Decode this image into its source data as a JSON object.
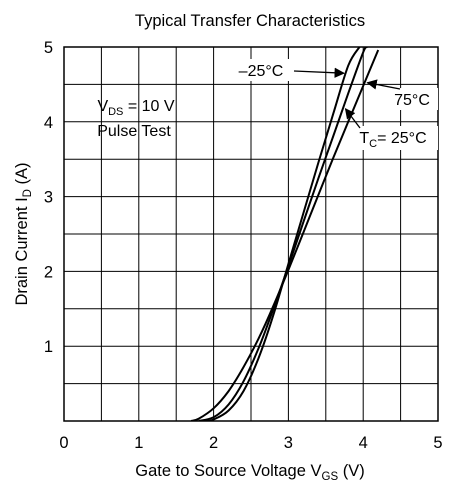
{
  "chart_data": {
    "type": "line",
    "title": "Typical Transfer Characteristics",
    "xlabel": {
      "main": "Gate to Source Voltage  V",
      "sub": "GS",
      "unit": "  (V)"
    },
    "ylabel": {
      "main": "Drain Current  I",
      "sub": "D",
      "unit": "  (A)"
    },
    "xlim": [
      0,
      5
    ],
    "ylim": [
      0,
      5
    ],
    "xticks": [
      "0",
      "1",
      "2",
      "3",
      "4",
      "5"
    ],
    "yticks": [
      "1",
      "2",
      "3",
      "4",
      "5"
    ],
    "grid": true,
    "conditions": {
      "line1": {
        "main": "V",
        "sub": "DS",
        "rest": " = 10 V"
      },
      "line2": "Pulse Test"
    },
    "series": [
      {
        "name": "–25°C",
        "x": [
          1.9,
          2.0,
          2.2,
          2.4,
          2.6,
          2.8,
          3.0,
          3.2,
          3.4,
          3.6,
          3.8,
          3.95
        ],
        "y": [
          0.0,
          0.02,
          0.14,
          0.4,
          0.84,
          1.42,
          2.1,
          2.78,
          3.45,
          4.11,
          4.75,
          5.0
        ]
      },
      {
        "name": "T_C = 25°C",
        "x": [
          1.8,
          2.0,
          2.2,
          2.4,
          2.6,
          2.8,
          3.0,
          3.2,
          3.4,
          3.6,
          3.8,
          4.0,
          4.05
        ],
        "y": [
          0.0,
          0.05,
          0.22,
          0.53,
          0.97,
          1.5,
          2.07,
          2.66,
          3.24,
          3.81,
          4.38,
          4.93,
          5.0
        ]
      },
      {
        "name": "75°C",
        "x": [
          1.7,
          1.8,
          2.0,
          2.2,
          2.4,
          2.6,
          2.8,
          3.0,
          3.2,
          3.4,
          3.6,
          3.8,
          4.0,
          4.2
        ],
        "y": [
          0.0,
          0.03,
          0.17,
          0.4,
          0.72,
          1.1,
          1.54,
          2.02,
          2.52,
          3.02,
          3.52,
          4.0,
          4.48,
          4.96
        ]
      }
    ],
    "annotations": [
      {
        "series": 0,
        "text": "–25°C"
      },
      {
        "series": 2,
        "text": "75°C"
      },
      {
        "series": 1,
        "text_main": "T",
        "text_sub": "C",
        "text_rest": "= 25°C"
      }
    ],
    "line_color": "#000000",
    "background": "#ffffff"
  }
}
